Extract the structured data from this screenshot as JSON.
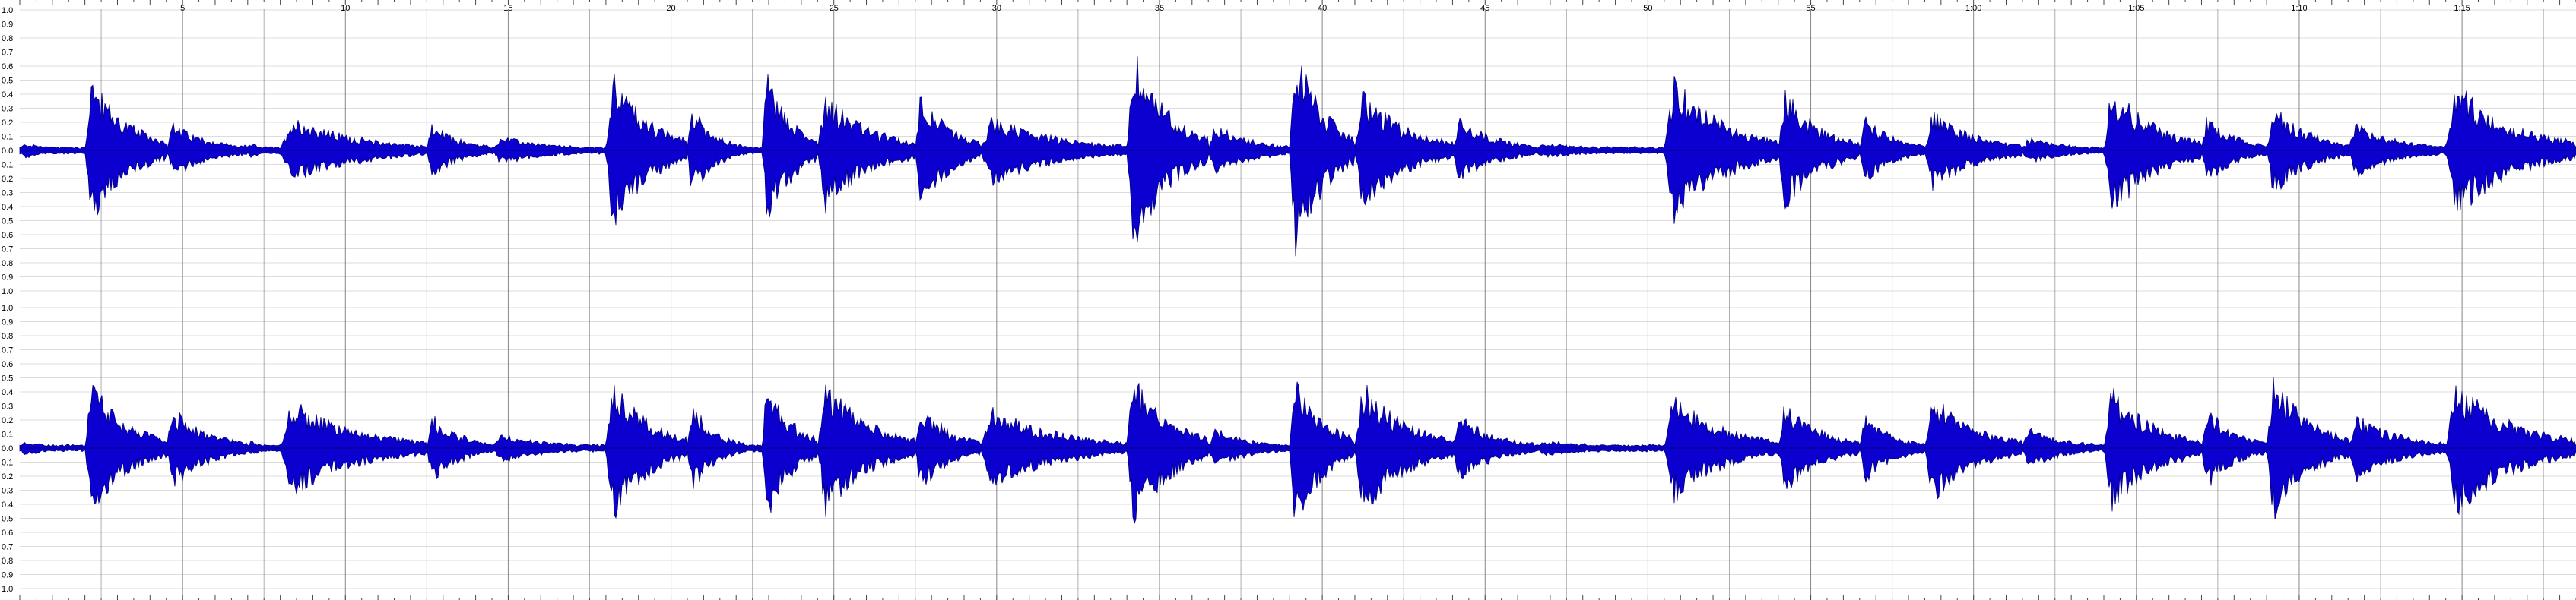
{
  "editor": {
    "background": "#ffffff",
    "waveform_fill": "#0b00d0",
    "waveform_outline": "#00007a",
    "gridline_color": "#dcdcdc",
    "marker_color": "#7a7a7a",
    "axis_text_color": "#000000"
  },
  "timeline": {
    "labels": [
      "5",
      "10",
      "15",
      "20",
      "25",
      "30",
      "35",
      "40",
      "45",
      "50",
      "55",
      "1:00",
      "1:05",
      "1:10",
      "1:15"
    ],
    "label_seconds": [
      5,
      10,
      15,
      20,
      25,
      30,
      35,
      40,
      45,
      50,
      55,
      60,
      65,
      70,
      75
    ],
    "total_seconds": 78.5
  },
  "amplitude_scale": {
    "labels": [
      "1.0",
      "0.9",
      "0.8",
      "0.7",
      "0.6",
      "0.5",
      "0.4",
      "0.3",
      "0.2",
      "0.1",
      "0.0",
      "0.1",
      "0.2",
      "0.3",
      "0.4",
      "0.5",
      "0.6",
      "0.7",
      "0.8",
      "0.9",
      "1.0"
    ]
  },
  "channels": [
    {
      "segments": [
        {
          "start": 0.0,
          "end": 2.0,
          "peak": 0.05
        },
        {
          "start": 2.0,
          "end": 4.5,
          "peak": 0.55
        },
        {
          "start": 4.5,
          "end": 7.0,
          "peak": 0.2
        },
        {
          "start": 7.0,
          "end": 8.0,
          "peak": 0.05
        },
        {
          "start": 8.0,
          "end": 12.5,
          "peak": 0.25
        },
        {
          "start": 12.5,
          "end": 14.5,
          "peak": 0.2
        },
        {
          "start": 14.5,
          "end": 18.0,
          "peak": 0.1
        },
        {
          "start": 18.0,
          "end": 20.5,
          "peak": 0.6
        },
        {
          "start": 20.5,
          "end": 22.0,
          "peak": 0.35
        },
        {
          "start": 22.0,
          "end": 22.8,
          "peak": 0.05
        },
        {
          "start": 22.8,
          "end": 24.5,
          "peak": 0.6
        },
        {
          "start": 24.5,
          "end": 27.5,
          "peak": 0.45
        },
        {
          "start": 27.5,
          "end": 29.5,
          "peak": 0.45
        },
        {
          "start": 29.5,
          "end": 34.0,
          "peak": 0.25
        },
        {
          "start": 34.0,
          "end": 36.5,
          "peak": 0.75
        },
        {
          "start": 36.5,
          "end": 39.0,
          "peak": 0.2
        },
        {
          "start": 39.0,
          "end": 41.0,
          "peak": 0.8
        },
        {
          "start": 41.0,
          "end": 44.0,
          "peak": 0.45
        },
        {
          "start": 44.0,
          "end": 46.5,
          "peak": 0.25
        },
        {
          "start": 46.5,
          "end": 50.5,
          "peak": 0.05
        },
        {
          "start": 50.5,
          "end": 54.0,
          "peak": 0.55
        },
        {
          "start": 54.0,
          "end": 56.5,
          "peak": 0.45
        },
        {
          "start": 56.5,
          "end": 58.5,
          "peak": 0.25
        },
        {
          "start": 58.5,
          "end": 61.5,
          "peak": 0.3
        },
        {
          "start": 61.5,
          "end": 64.0,
          "peak": 0.1
        },
        {
          "start": 64.0,
          "end": 67.0,
          "peak": 0.5
        },
        {
          "start": 67.0,
          "end": 69.0,
          "peak": 0.25
        },
        {
          "start": 69.0,
          "end": 71.5,
          "peak": 0.35
        },
        {
          "start": 71.5,
          "end": 74.5,
          "peak": 0.2
        },
        {
          "start": 74.5,
          "end": 78.5,
          "peak": 0.5
        }
      ]
    },
    {
      "segments": [
        {
          "start": 0.0,
          "end": 2.0,
          "peak": 0.05
        },
        {
          "start": 2.0,
          "end": 4.5,
          "peak": 0.5
        },
        {
          "start": 4.5,
          "end": 7.0,
          "peak": 0.3
        },
        {
          "start": 7.0,
          "end": 8.0,
          "peak": 0.05
        },
        {
          "start": 8.0,
          "end": 12.5,
          "peak": 0.35
        },
        {
          "start": 12.5,
          "end": 14.5,
          "peak": 0.25
        },
        {
          "start": 14.5,
          "end": 18.0,
          "peak": 0.1
        },
        {
          "start": 18.0,
          "end": 20.5,
          "peak": 0.55
        },
        {
          "start": 20.5,
          "end": 22.0,
          "peak": 0.35
        },
        {
          "start": 22.0,
          "end": 22.8,
          "peak": 0.05
        },
        {
          "start": 22.8,
          "end": 24.5,
          "peak": 0.55
        },
        {
          "start": 24.5,
          "end": 27.5,
          "peak": 0.5
        },
        {
          "start": 27.5,
          "end": 29.5,
          "peak": 0.35
        },
        {
          "start": 29.5,
          "end": 34.0,
          "peak": 0.3
        },
        {
          "start": 34.0,
          "end": 36.5,
          "peak": 0.6
        },
        {
          "start": 36.5,
          "end": 39.0,
          "peak": 0.15
        },
        {
          "start": 39.0,
          "end": 41.0,
          "peak": 0.6
        },
        {
          "start": 41.0,
          "end": 44.0,
          "peak": 0.5
        },
        {
          "start": 44.0,
          "end": 46.5,
          "peak": 0.25
        },
        {
          "start": 46.5,
          "end": 50.5,
          "peak": 0.05
        },
        {
          "start": 50.5,
          "end": 54.0,
          "peak": 0.4
        },
        {
          "start": 54.0,
          "end": 56.5,
          "peak": 0.35
        },
        {
          "start": 56.5,
          "end": 58.5,
          "peak": 0.25
        },
        {
          "start": 58.5,
          "end": 61.5,
          "peak": 0.4
        },
        {
          "start": 61.5,
          "end": 64.0,
          "peak": 0.15
        },
        {
          "start": 64.0,
          "end": 67.0,
          "peak": 0.45
        },
        {
          "start": 67.0,
          "end": 69.0,
          "peak": 0.3
        },
        {
          "start": 69.0,
          "end": 71.5,
          "peak": 0.55
        },
        {
          "start": 71.5,
          "end": 74.5,
          "peak": 0.25
        },
        {
          "start": 74.5,
          "end": 78.5,
          "peak": 0.5
        }
      ]
    }
  ]
}
